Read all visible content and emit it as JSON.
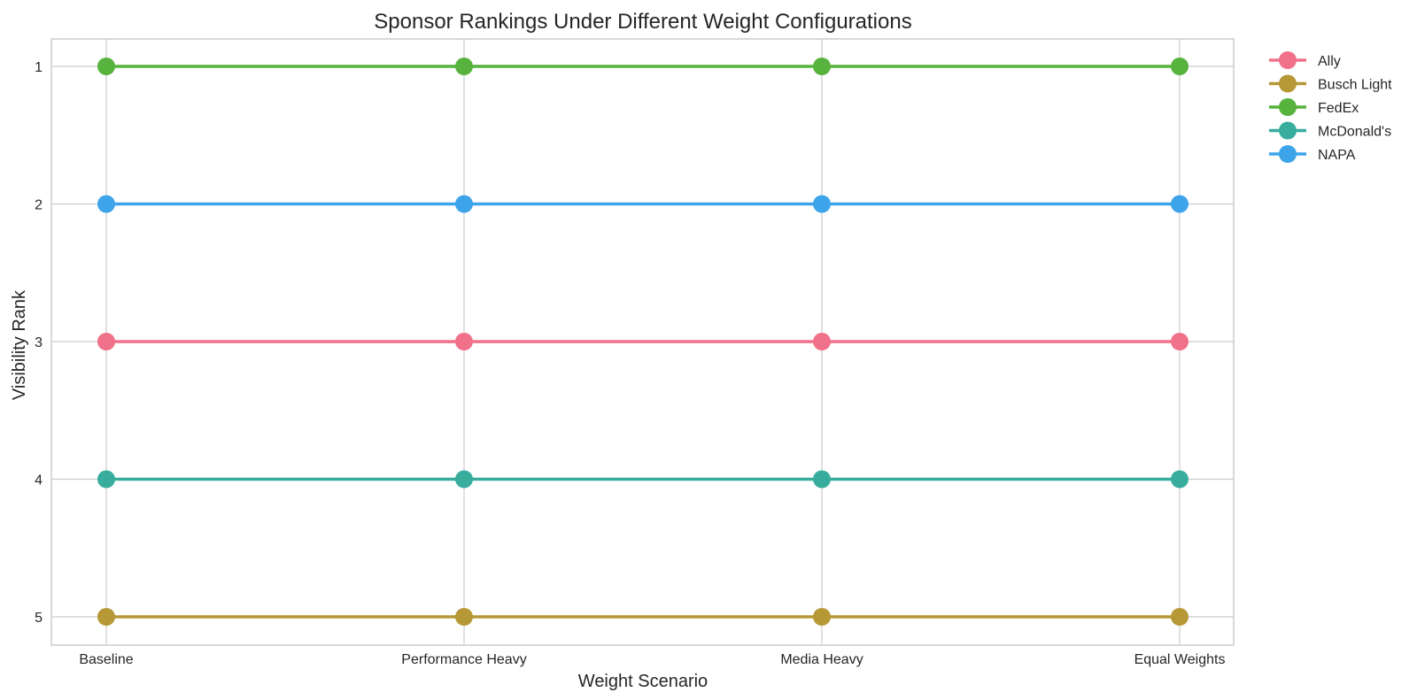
{
  "chart_data": {
    "type": "line",
    "title": "Sponsor Rankings Under Different Weight Configurations",
    "xlabel": "Weight Scenario",
    "ylabel": "Visibility Rank",
    "categories": [
      "Baseline",
      "Performance Heavy",
      "Media Heavy",
      "Equal Weights"
    ],
    "y_ticks": [
      "1",
      "2",
      "3",
      "4",
      "5"
    ],
    "ylim": [
      5.2,
      0.8
    ],
    "y_inverted": true,
    "grid": true,
    "legend_position": "outside top-right",
    "series": [
      {
        "name": "Ally",
        "color": "#f07189",
        "values": [
          3,
          3,
          3,
          3
        ]
      },
      {
        "name": "Busch Light",
        "color": "#b79836",
        "values": [
          5,
          5,
          5,
          5
        ]
      },
      {
        "name": "FedEx",
        "color": "#57b33d",
        "values": [
          1,
          1,
          1,
          1
        ]
      },
      {
        "name": "McDonald's",
        "color": "#38ad9e",
        "values": [
          4,
          4,
          4,
          4
        ]
      },
      {
        "name": "NAPA",
        "color": "#3ea4ea",
        "values": [
          2,
          2,
          2,
          2
        ]
      }
    ]
  }
}
